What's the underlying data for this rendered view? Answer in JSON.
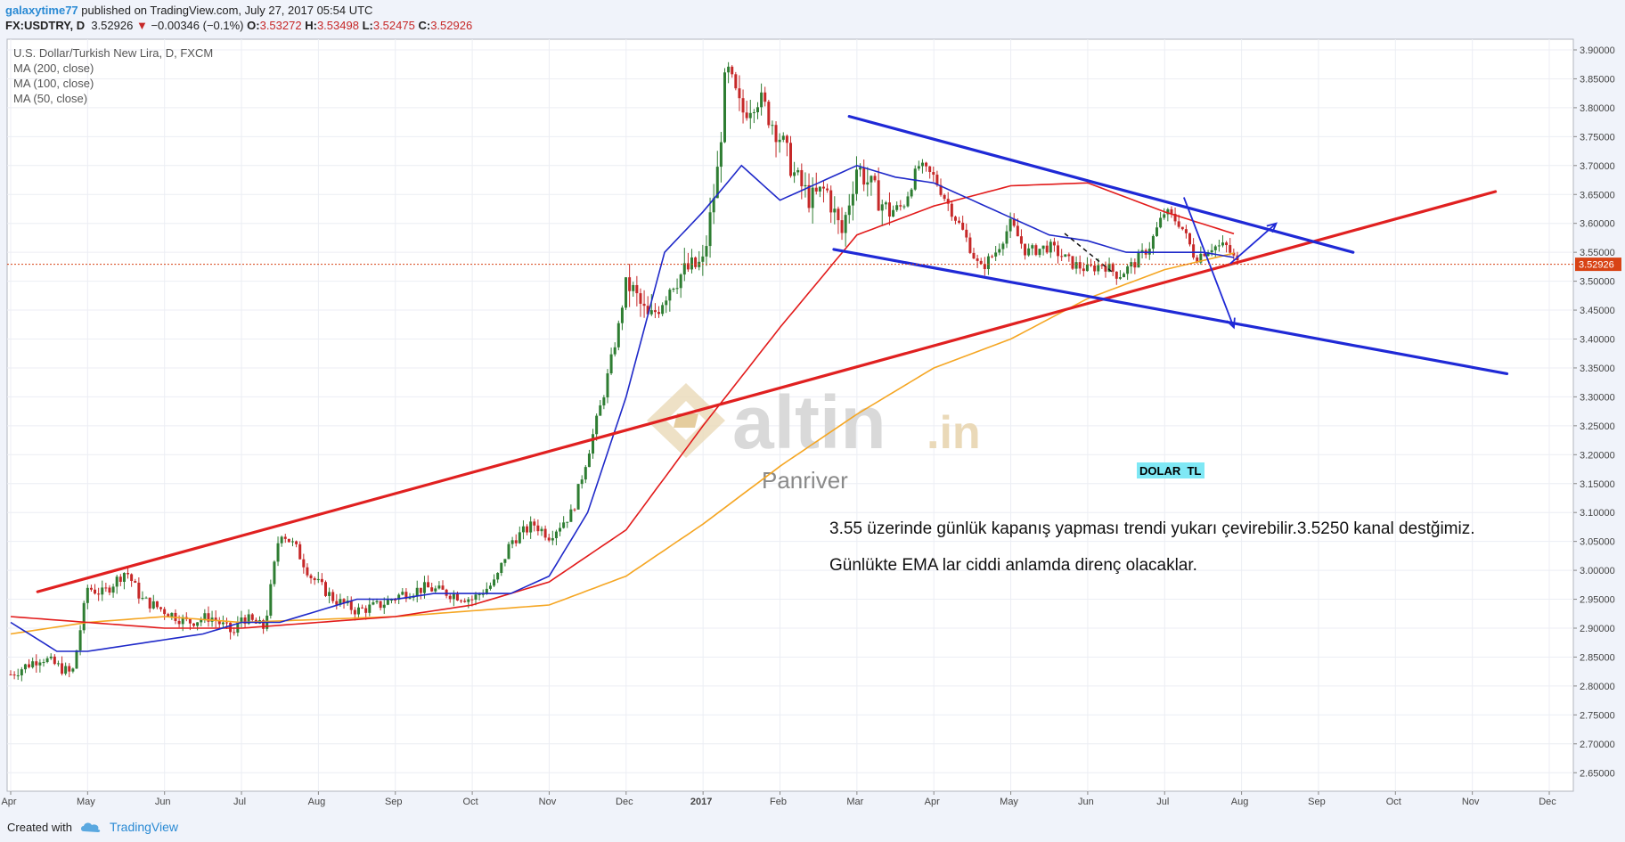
{
  "header": {
    "user": "galaxytime77",
    "published": "published on TradingView.com, July 27, 2017 05:54 UTC",
    "symbol": "FX:USDTRY, D",
    "last": "3.52926",
    "change": "−0.00346 (−0.1%)",
    "open_label": "O:",
    "open": "3.53272",
    "high_label": "H:",
    "high": "3.53498",
    "low_label": "L:",
    "low": "3.52475",
    "close_label": "C:",
    "close": "3.52926"
  },
  "footer": {
    "created_with": "Created with",
    "brand": "TradingView"
  },
  "colors": {
    "ma200": "#f5a623",
    "ma100": "#e21b1b",
    "ma50": "#1f29c9",
    "up": "#2e7d32",
    "down": "#c62828",
    "trend_red": "#e02020",
    "channel_blue": "#1f29d6",
    "price_tag": "#d84315"
  },
  "chart_data": {
    "type": "candlestick",
    "title": "U.S. Dollar/Turkish New Lira, D, FXCM",
    "ylim": [
      2.62,
      3.92
    ],
    "y_ticks": [
      "3.90000",
      "3.85000",
      "3.80000",
      "3.75000",
      "3.70000",
      "3.65000",
      "3.60000",
      "3.55000",
      "3.50000",
      "3.45000",
      "3.40000",
      "3.35000",
      "3.30000",
      "3.25000",
      "3.20000",
      "3.15000",
      "3.10000",
      "3.05000",
      "3.00000",
      "2.95000",
      "2.90000",
      "2.85000",
      "2.80000",
      "2.75000",
      "2.70000",
      "2.65000"
    ],
    "x_ticks": [
      "Apr",
      "May",
      "Jun",
      "Jul",
      "Aug",
      "Sep",
      "Oct",
      "Nov",
      "Dec",
      "2017",
      "Feb",
      "Mar",
      "Apr",
      "May",
      "Jun",
      "Jul",
      "Aug",
      "Sep",
      "Oct",
      "Nov",
      "Dec"
    ],
    "x_tick_months": [
      0,
      1,
      2,
      3,
      4,
      5,
      6,
      7,
      8,
      9,
      10,
      11,
      12,
      13,
      14,
      15,
      16,
      17,
      18,
      19,
      20
    ],
    "last_price": "3.52926",
    "last_price_value": 3.52926,
    "legend": [
      "MA (200, close)",
      "MA (100, close)",
      "MA (50, close)"
    ],
    "grid": true,
    "close_series": {
      "months": [
        0,
        0.4,
        0.8,
        1,
        1.2,
        1.5,
        1.7,
        2,
        2.3,
        2.6,
        2.9,
        3,
        3.3,
        3.5,
        3.7,
        3.9,
        4.2,
        4.5,
        4.8,
        5.1,
        5.4,
        5.7,
        6,
        6.3,
        6.5,
        6.8,
        7,
        7.3,
        7.5,
        7.7,
        7.9,
        8,
        8.1,
        8.3,
        8.6,
        8.8,
        9,
        9.2,
        9.3,
        9.5,
        9.7,
        9.8,
        10,
        10.2,
        10.4,
        10.6,
        10.8,
        11,
        11.2,
        11.4,
        11.6,
        11.8,
        12,
        12.2,
        12.4,
        12.6,
        12.8,
        13,
        13.2,
        13.5,
        13.8,
        14,
        14.2,
        14.4,
        14.6,
        14.8,
        15,
        15.2,
        15.4,
        15.6,
        15.8,
        15.95
      ],
      "values": [
        2.82,
        2.85,
        2.82,
        2.97,
        2.96,
        3.0,
        2.95,
        2.93,
        2.91,
        2.92,
        2.89,
        2.92,
        2.9,
        3.07,
        3.04,
        2.99,
        2.95,
        2.93,
        2.94,
        2.96,
        2.97,
        2.96,
        2.95,
        2.98,
        3.05,
        3.08,
        3.06,
        3.1,
        3.2,
        3.3,
        3.42,
        3.5,
        3.48,
        3.43,
        3.5,
        3.52,
        3.53,
        3.7,
        3.87,
        3.79,
        3.82,
        3.8,
        3.75,
        3.68,
        3.64,
        3.66,
        3.58,
        3.7,
        3.66,
        3.62,
        3.63,
        3.7,
        3.68,
        3.63,
        3.58,
        3.52,
        3.55,
        3.6,
        3.55,
        3.56,
        3.53,
        3.52,
        3.53,
        3.51,
        3.53,
        3.56,
        3.62,
        3.6,
        3.54,
        3.56,
        3.56,
        3.53
      ]
    },
    "ma200": {
      "months": [
        0,
        1,
        2,
        3,
        4,
        5,
        6,
        7,
        8,
        9,
        10,
        11,
        12,
        13,
        14,
        15,
        15.95
      ],
      "values": [
        2.89,
        2.91,
        2.92,
        2.91,
        2.915,
        2.92,
        2.93,
        2.94,
        2.99,
        3.08,
        3.18,
        3.27,
        3.35,
        3.4,
        3.47,
        3.52,
        3.55
      ]
    },
    "ma100": {
      "months": [
        0,
        1,
        2,
        3,
        4,
        5,
        6,
        7,
        8,
        9,
        10,
        11,
        12,
        13,
        14,
        15,
        15.95
      ],
      "values": [
        2.92,
        2.91,
        2.9,
        2.9,
        2.91,
        2.92,
        2.94,
        2.98,
        3.07,
        3.25,
        3.42,
        3.58,
        3.63,
        3.665,
        3.67,
        3.62,
        3.58
      ]
    },
    "ma50": {
      "months": [
        0,
        0.6,
        1,
        1.5,
        2,
        2.5,
        3,
        3.5,
        4,
        4.5,
        5,
        5.5,
        6,
        6.5,
        7,
        7.5,
        8,
        8.5,
        9,
        9.5,
        10,
        10.5,
        11,
        11.5,
        12,
        12.5,
        13,
        13.5,
        14,
        14.5,
        15,
        15.5,
        15.95
      ],
      "values": [
        2.91,
        2.86,
        2.86,
        2.87,
        2.88,
        2.89,
        2.91,
        2.91,
        2.93,
        2.95,
        2.95,
        2.96,
        2.96,
        2.96,
        2.99,
        3.1,
        3.3,
        3.55,
        3.62,
        3.7,
        3.64,
        3.67,
        3.7,
        3.68,
        3.67,
        3.64,
        3.61,
        3.58,
        3.57,
        3.55,
        3.55,
        3.55,
        3.54
      ]
    },
    "trendlines": [
      {
        "name": "red-support",
        "color": "#e02020",
        "m1": 0.35,
        "v1": 2.963,
        "m2": 19.3,
        "v2": 3.655
      },
      {
        "name": "channel-upper",
        "color": "#1f29d6",
        "m1": 10.9,
        "v1": 3.785,
        "m2": 17.45,
        "v2": 3.55
      },
      {
        "name": "channel-lower",
        "color": "#1f29d6",
        "m1": 10.7,
        "v1": 3.555,
        "m2": 19.45,
        "v2": 3.34
      }
    ],
    "arrows": [
      {
        "m1": 15.85,
        "v1": 3.53,
        "m2": 16.45,
        "v2": 3.6
      },
      {
        "m1": 15.25,
        "v1": 3.645,
        "m2": 15.9,
        "v2": 3.42
      }
    ],
    "annotations": [
      "3.55 üzerinde günlük kapanış yapması trendi yukarı çevirebilir.3.5250 kanal destğimiz.",
      "Günlükte EMA lar ciddi anlamda direnç olacaklar."
    ],
    "label_box": "DOLAR  TL",
    "watermark": {
      "brand": "altin",
      "suffix": ".in",
      "sub": "Panriver"
    }
  }
}
